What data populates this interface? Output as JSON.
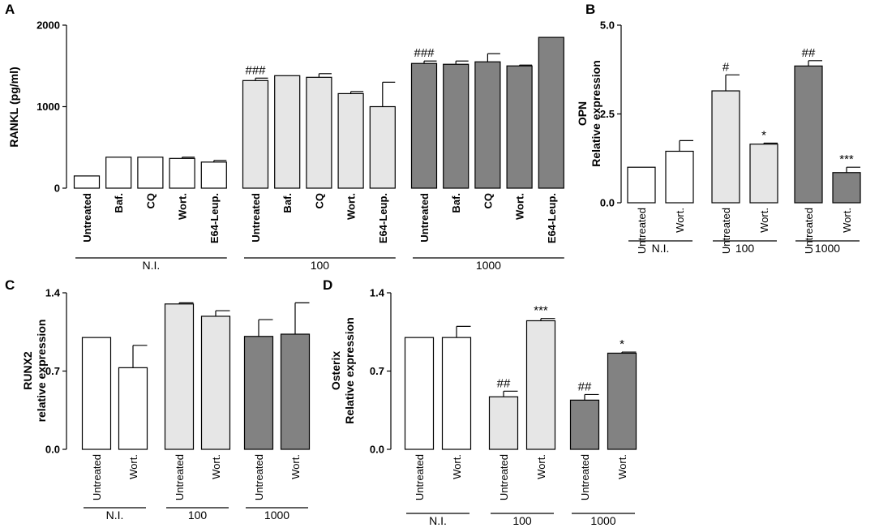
{
  "chart_data": [
    {
      "panel": "A",
      "type": "bar",
      "ylabel": "RANKL (pg/ml)",
      "ylim": [
        0,
        2000
      ],
      "yticks": [
        "0",
        "1000",
        "2000"
      ],
      "categories": [
        "Untreated",
        "Baf.",
        "CQ",
        "Wort.",
        "E64-Leup.",
        "Untreated",
        "Baf.",
        "CQ",
        "Wort.",
        "E64-Leup.",
        "Untreated",
        "Baf.",
        "CQ",
        "Wort.",
        "E64-Leup."
      ],
      "values": [
        150,
        380,
        380,
        365,
        320,
        1320,
        1380,
        1360,
        1160,
        1000,
        1530,
        1520,
        1550,
        1500,
        1850
      ],
      "errors": [
        0,
        0,
        0,
        15,
        20,
        30,
        0,
        45,
        25,
        300,
        30,
        40,
        100,
        10,
        0
      ],
      "fills": [
        "white",
        "white",
        "white",
        "white",
        "white",
        "light",
        "light",
        "light",
        "light",
        "light",
        "dark",
        "dark",
        "dark",
        "dark",
        "dark"
      ],
      "annotations": [
        "",
        "",
        "",
        "",
        "",
        "###",
        "",
        "",
        "",
        "",
        "###",
        "",
        "",
        "",
        ""
      ],
      "groups": [
        {
          "label": "N.I.",
          "count": 5
        },
        {
          "label": "100",
          "count": 5
        },
        {
          "label": "1000",
          "count": 5
        }
      ]
    },
    {
      "panel": "B",
      "type": "bar",
      "ylabel": "Relative expression",
      "ylabel_top": "OPN",
      "ylim": [
        0,
        5
      ],
      "yticks": [
        "0.0",
        "2.5",
        "5.0"
      ],
      "categories": [
        "Untreated",
        "Wort.",
        "Untreated",
        "Wort.",
        "Untreated",
        "Wort."
      ],
      "values": [
        1.0,
        1.45,
        3.15,
        1.65,
        3.85,
        0.85
      ],
      "errors": [
        0,
        0.3,
        0.45,
        0.03,
        0.15,
        0.15
      ],
      "fills": [
        "white",
        "white",
        "light",
        "light",
        "dark",
        "dark"
      ],
      "annotations": [
        "",
        "",
        "#",
        "*",
        "##",
        "***"
      ],
      "groups": [
        {
          "label": "N.I.",
          "count": 2
        },
        {
          "label": "100",
          "count": 2
        },
        {
          "label": "1000",
          "count": 2
        }
      ]
    },
    {
      "panel": "C",
      "type": "bar",
      "ylabel": "relative expression",
      "ylabel_top": "RUNX2",
      "ylim": [
        0,
        1.4
      ],
      "yticks": [
        "0.0",
        "0.7",
        "1.4"
      ],
      "categories": [
        "Untreated",
        "Wort.",
        "Untreated",
        "Wort.",
        "Untreated",
        "Wort."
      ],
      "values": [
        1.0,
        0.73,
        1.3,
        1.19,
        1.01,
        1.03
      ],
      "errors": [
        0,
        0.2,
        0.01,
        0.05,
        0.15,
        0.28
      ],
      "fills": [
        "white",
        "white",
        "light",
        "light",
        "dark",
        "dark"
      ],
      "annotations": [
        "",
        "",
        "",
        "",
        "",
        ""
      ],
      "groups": [
        {
          "label": "N.I.",
          "count": 2
        },
        {
          "label": "100",
          "count": 2
        },
        {
          "label": "1000",
          "count": 2
        }
      ]
    },
    {
      "panel": "D",
      "type": "bar",
      "ylabel": "Relative expression",
      "ylabel_top": "Osterix",
      "ylim": [
        0,
        1.4
      ],
      "yticks": [
        "0.0",
        "0.7",
        "1.4"
      ],
      "categories": [
        "Untreated",
        "Wort.",
        "Untreated",
        "Wort.",
        "Untreated",
        "Wort."
      ],
      "values": [
        1.0,
        1.0,
        0.47,
        1.15,
        0.44,
        0.86
      ],
      "errors": [
        0,
        0.1,
        0.05,
        0.02,
        0.05,
        0.01
      ],
      "fills": [
        "white",
        "white",
        "light",
        "light",
        "dark",
        "dark"
      ],
      "annotations": [
        "",
        "",
        "##",
        "***",
        "##",
        "*"
      ],
      "groups": [
        {
          "label": "N.I.",
          "count": 2
        },
        {
          "label": "100",
          "count": 2
        },
        {
          "label": "1000",
          "count": 2
        }
      ]
    }
  ],
  "colors": {
    "white": "#ffffff",
    "light": "#e6e6e6",
    "dark": "#828282",
    "stroke": "#000000"
  }
}
